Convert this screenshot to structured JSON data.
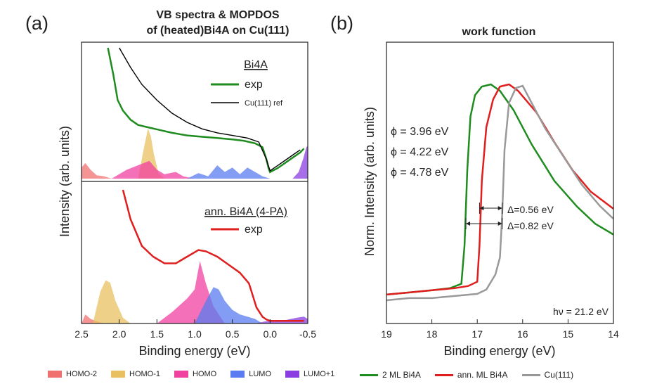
{
  "figure": {
    "panel_a_label": "(a)",
    "panel_b_label": "(b)"
  },
  "chart_data": [
    {
      "type": "area",
      "panel": "a",
      "title": "VB spectra & MOPDOS",
      "subtitle": "of (heated)Bi4A on Cu(111)",
      "xlabel": "Binding energy (eV)",
      "ylabel": "Intensity (arb. units)",
      "xlim": [
        2.5,
        -0.5
      ],
      "x_ticks": [
        "2.5",
        "2.0",
        "1.5",
        "1.0",
        "0.5",
        "0.0",
        "-0.5"
      ],
      "grid": false,
      "legend_position": "bottom",
      "pdos_legend": [
        {
          "name": "HOMO-2",
          "color": "#f07070"
        },
        {
          "name": "HOMO-1",
          "color": "#e8c060"
        },
        {
          "name": "HOMO",
          "color": "#f040a0"
        },
        {
          "name": "LUMO",
          "color": "#5a7cf0"
        },
        {
          "name": "LUMO+1",
          "color": "#8a3ee0"
        }
      ],
      "subpanels": [
        {
          "label": "Bi4A",
          "series": [
            {
              "name": "exp",
              "color": "#1e8c1e",
              "x": [
                2.15,
                2.08,
                2.02,
                1.95,
                1.85,
                1.75,
                1.6,
                1.45,
                1.3,
                1.1,
                0.9,
                0.7,
                0.5,
                0.35,
                0.2,
                0.1,
                0.05,
                0.02,
                0.0,
                -0.1,
                -0.2,
                -0.3,
                -0.4,
                -0.45
              ],
              "y": [
                1.0,
                0.8,
                0.6,
                0.52,
                0.45,
                0.41,
                0.39,
                0.37,
                0.35,
                0.33,
                0.32,
                0.31,
                0.3,
                0.29,
                0.27,
                0.24,
                0.15,
                0.08,
                0.05,
                0.08,
                0.12,
                0.16,
                0.2,
                0.23
              ]
            },
            {
              "name": "Cu(111) ref",
              "color": "#000000",
              "x": [
                2.0,
                1.85,
                1.7,
                1.5,
                1.3,
                1.1,
                0.9,
                0.7,
                0.5,
                0.3,
                0.15,
                0.05,
                0.0,
                -0.1,
                -0.2,
                -0.3,
                -0.4
              ],
              "y": [
                1.0,
                0.85,
                0.72,
                0.6,
                0.5,
                0.43,
                0.38,
                0.35,
                0.33,
                0.31,
                0.28,
                0.15,
                0.06,
                0.1,
                0.14,
                0.18,
                0.22
              ]
            }
          ],
          "pdos": [
            {
              "name": "HOMO-2",
              "x": [
                2.5,
                2.45,
                2.38,
                2.3,
                2.2,
                2.1
              ],
              "y": [
                0.1,
                0.14,
                0.08,
                0.03,
                0.02,
                0.0
              ]
            },
            {
              "name": "HOMO-1",
              "x": [
                1.75,
                1.68,
                1.62,
                1.58,
                1.54,
                1.48,
                1.4
              ],
              "y": [
                0.0,
                0.25,
                0.45,
                0.38,
                0.22,
                0.05,
                0.0
              ]
            },
            {
              "name": "HOMO",
              "x": [
                2.1,
                1.9,
                1.75,
                1.6,
                1.5,
                1.4,
                1.25,
                1.15,
                1.0
              ],
              "y": [
                0.0,
                0.08,
                0.12,
                0.16,
                0.08,
                0.04,
                0.06,
                0.02,
                0.0
              ]
            },
            {
              "name": "LUMO",
              "x": [
                1.1,
                0.95,
                0.82,
                0.7,
                0.6,
                0.5,
                0.4,
                0.3,
                0.2,
                0.1,
                0.0
              ],
              "y": [
                0.0,
                0.05,
                0.02,
                0.12,
                0.06,
                0.1,
                0.04,
                0.1,
                0.06,
                0.02,
                0.0
              ]
            },
            {
              "name": "LUMO+1",
              "x": [
                -0.3,
                -0.38,
                -0.44,
                -0.48,
                -0.5
              ],
              "y": [
                0.0,
                0.06,
                0.18,
                0.28,
                0.3
              ]
            }
          ]
        },
        {
          "label": "ann. Bi4A (4-PA)",
          "series": [
            {
              "name": "exp",
              "color": "#e01e1e",
              "x": [
                1.95,
                1.85,
                1.7,
                1.55,
                1.4,
                1.25,
                1.1,
                0.95,
                0.85,
                0.7,
                0.55,
                0.4,
                0.28,
                0.18,
                0.1,
                0.05,
                0.0,
                -0.2,
                -0.45
              ],
              "y": [
                1.0,
                0.78,
                0.58,
                0.5,
                0.45,
                0.45,
                0.5,
                0.55,
                0.54,
                0.5,
                0.44,
                0.38,
                0.3,
                0.12,
                0.05,
                0.03,
                0.02,
                0.02,
                0.02
              ]
            }
          ],
          "pdos": [
            {
              "name": "HOMO-2",
              "x": [
                2.5,
                2.45,
                2.38,
                2.3,
                2.2
              ],
              "y": [
                0.0,
                0.08,
                0.04,
                0.02,
                0.0
              ]
            },
            {
              "name": "HOMO-1",
              "x": [
                2.35,
                2.25,
                2.18,
                2.12,
                2.05,
                1.95,
                1.85
              ],
              "y": [
                0.0,
                0.28,
                0.38,
                0.36,
                0.2,
                0.05,
                0.0
              ]
            },
            {
              "name": "HOMO",
              "x": [
                1.5,
                1.3,
                1.1,
                1.0,
                0.93,
                0.85,
                0.75,
                0.6
              ],
              "y": [
                0.0,
                0.1,
                0.22,
                0.3,
                0.55,
                0.35,
                0.15,
                0.0
              ]
            },
            {
              "name": "LUMO",
              "x": [
                1.0,
                0.85,
                0.75,
                0.68,
                0.6,
                0.5,
                0.4,
                0.3,
                0.2,
                0.1
              ],
              "y": [
                0.0,
                0.2,
                0.32,
                0.3,
                0.2,
                0.12,
                0.08,
                0.06,
                0.04,
                0.0
              ]
            },
            {
              "name": "LUMO+1",
              "x": [
                0.2,
                0.05,
                -0.2,
                -0.35,
                -0.45,
                -0.5
              ],
              "y": [
                0.0,
                0.02,
                0.03,
                0.05,
                0.06,
                0.04
              ]
            }
          ]
        }
      ]
    },
    {
      "type": "line",
      "panel": "b",
      "title": "work function",
      "xlabel": "Binding energy (eV)",
      "ylabel": "Norm. Intensity (arb. units)",
      "xlim": [
        19,
        14
      ],
      "ylim": [
        0,
        1
      ],
      "x_ticks": [
        "19",
        "18",
        "17",
        "16",
        "15",
        "14"
      ],
      "grid": false,
      "legend_position": "bottom",
      "annotation": "hν = 21.2 eV",
      "workfunctions": [
        {
          "text": "ϕ = 3.96 eV",
          "color": "#1e8c1e"
        },
        {
          "text": "ϕ = 4.22 eV",
          "color": "#e01e1e"
        },
        {
          "text": "ϕ = 4.78 eV",
          "color": "#999999"
        }
      ],
      "deltas": [
        {
          "text": "Δ=0.56 eV",
          "from": 16.95,
          "to": 16.45
        },
        {
          "text": "Δ=0.82 eV",
          "from": 17.25,
          "to": 16.45
        }
      ],
      "series": [
        {
          "name": "2 ML Bi4A",
          "color": "#1e8c1e",
          "x": [
            19,
            18.5,
            18.0,
            17.6,
            17.35,
            17.28,
            17.22,
            17.15,
            17.05,
            16.9,
            16.7,
            16.5,
            16.2,
            15.8,
            15.3,
            14.8,
            14.4,
            14.0
          ],
          "y": [
            0.02,
            0.03,
            0.04,
            0.05,
            0.07,
            0.25,
            0.6,
            0.85,
            0.95,
            0.99,
            1.0,
            0.97,
            0.88,
            0.72,
            0.55,
            0.43,
            0.35,
            0.3
          ]
        },
        {
          "name": "ann. ML Bi4A",
          "color": "#e01e1e",
          "x": [
            19,
            18.5,
            18.0,
            17.5,
            17.2,
            17.0,
            16.95,
            16.9,
            16.8,
            16.65,
            16.5,
            16.3,
            16.1,
            15.7,
            15.3,
            14.9,
            14.5,
            14.0
          ],
          "y": [
            0.02,
            0.03,
            0.04,
            0.05,
            0.06,
            0.08,
            0.25,
            0.55,
            0.8,
            0.93,
            0.99,
            1.0,
            0.97,
            0.87,
            0.73,
            0.6,
            0.5,
            0.42
          ]
        },
        {
          "name": "Cu(111)",
          "color": "#999999",
          "x": [
            19,
            18.5,
            18.0,
            17.5,
            17.0,
            16.8,
            16.6,
            16.5,
            16.45,
            16.4,
            16.3,
            16.15,
            16.0,
            15.8,
            15.5,
            15.1,
            14.7,
            14.3,
            14.0
          ],
          "y": [
            0.0,
            0.01,
            0.01,
            0.02,
            0.03,
            0.05,
            0.12,
            0.2,
            0.4,
            0.7,
            0.92,
            0.99,
            1.0,
            0.92,
            0.8,
            0.67,
            0.54,
            0.44,
            0.38
          ]
        }
      ]
    }
  ]
}
